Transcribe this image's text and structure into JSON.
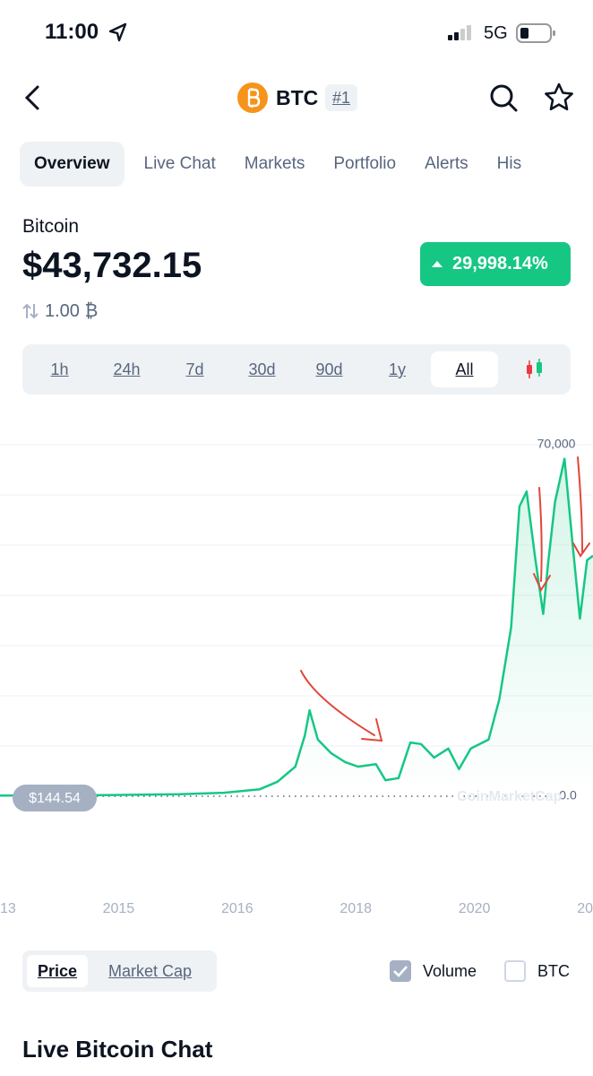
{
  "status_bar": {
    "time": "11:00",
    "network": "5G"
  },
  "header": {
    "symbol": "BTC",
    "rank": "#1"
  },
  "tabs": [
    "Overview",
    "Live Chat",
    "Markets",
    "Portfolio",
    "Alerts",
    "His"
  ],
  "coin": {
    "name": "Bitcoin",
    "price": "$43,732.15",
    "change": "29,998.14%",
    "holding": "1.00 ₿"
  },
  "ranges": [
    "1h",
    "24h",
    "7d",
    "30d",
    "90d",
    "1y",
    "All"
  ],
  "chart_data": {
    "type": "line",
    "color": "#16c784",
    "x": [
      0,
      0.76,
      1.51,
      1.89,
      2.19,
      2.34,
      2.49,
      2.57,
      2.61,
      2.68,
      2.79,
      2.91,
      3.02,
      3.17,
      3.25,
      3.36,
      3.46,
      3.55,
      3.66,
      3.78,
      3.87,
      3.97,
      4.12,
      4.21,
      4.31,
      4.38,
      4.44,
      4.51,
      4.58,
      4.62,
      4.68,
      4.76,
      4.83,
      4.89,
      4.95,
      5
    ],
    "values": [
      144,
      200,
      400,
      700,
      1400,
      2900,
      5900,
      12100,
      17100,
      11300,
      8600,
      6800,
      5900,
      6400,
      3200,
      3600,
      10700,
      10400,
      7700,
      9500,
      5400,
      9500,
      11300,
      19300,
      33600,
      57700,
      60700,
      47900,
      36300,
      46100,
      58600,
      67200,
      49700,
      35400,
      47000,
      47900
    ],
    "xlim": [
      0,
      5
    ],
    "xticks": [
      {
        "value": 0,
        "label": "13"
      },
      {
        "value": 1,
        "label": "2015"
      },
      {
        "value": 2,
        "label": "2016"
      },
      {
        "value": 3,
        "label": "2018"
      },
      {
        "value": 4,
        "label": "2020"
      },
      {
        "value": 5,
        "label": "20"
      }
    ],
    "ylim": [
      0,
      70000
    ],
    "yticks": [
      {
        "value": 70000,
        "label": "70,000"
      },
      {
        "value": 0,
        "label": "0.0"
      }
    ],
    "ygrid": [
      10000,
      20000,
      30000,
      40000,
      50000,
      60000
    ],
    "current_price_label": "$144.54",
    "watermark": "CoinMarketCap"
  },
  "chart_toggle": [
    "Price",
    "Market Cap"
  ],
  "options": [
    {
      "label": "Volume",
      "checked": true
    },
    {
      "label": "BTC",
      "checked": false
    }
  ],
  "section_title": "Live Bitcoin Chat"
}
